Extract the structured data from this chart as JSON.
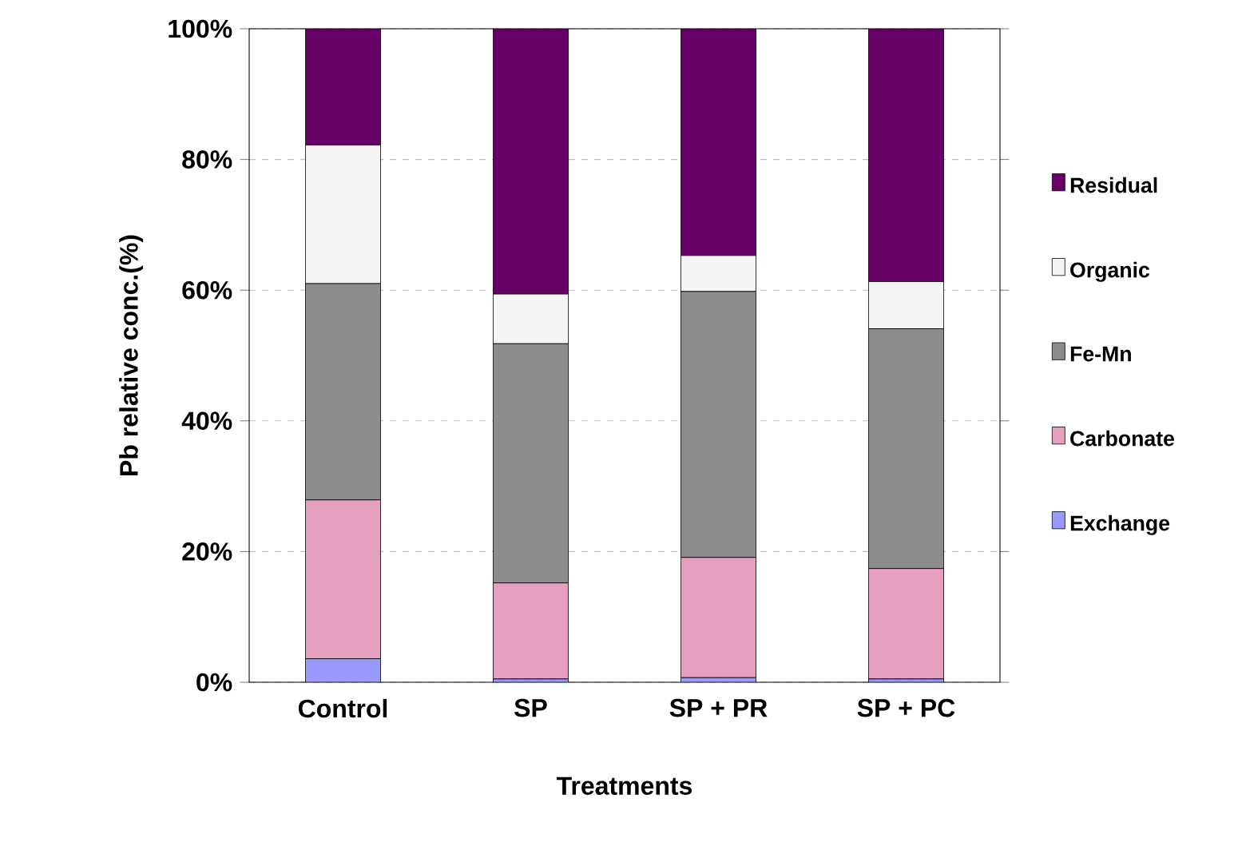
{
  "chart_data": {
    "type": "bar",
    "stacked": true,
    "xlabel": "Treatments",
    "ylabel": "Pb relative conc.(%)",
    "categories": [
      "Control",
      "SP",
      "SP + PR",
      "SP + PC"
    ],
    "series": [
      {
        "name": "Exchange",
        "color": "#9999ff",
        "values": [
          3.6,
          0.5,
          0.7,
          0.5
        ]
      },
      {
        "name": "Carbonate",
        "color": "#e6a0bf",
        "values": [
          24.3,
          14.7,
          18.4,
          16.9
        ]
      },
      {
        "name": "Fe-Mn",
        "color": "#8c8c8c",
        "values": [
          33.1,
          36.6,
          40.7,
          36.7
        ]
      },
      {
        "name": "Organic",
        "color": "#f4f4f4",
        "values": [
          21.2,
          7.6,
          5.5,
          7.2
        ]
      },
      {
        "name": "Residual",
        "color": "#660066",
        "values": [
          17.8,
          40.6,
          34.7,
          38.7
        ]
      }
    ],
    "ylim": [
      0,
      100
    ],
    "yticks": [
      {
        "value": 0,
        "label": "0%"
      },
      {
        "value": 20,
        "label": "20%"
      },
      {
        "value": 40,
        "label": "40%"
      },
      {
        "value": 60,
        "label": "60%"
      },
      {
        "value": 80,
        "label": "80%"
      },
      {
        "value": 100,
        "label": "100%"
      }
    ],
    "grid": "y",
    "legend": "right"
  }
}
